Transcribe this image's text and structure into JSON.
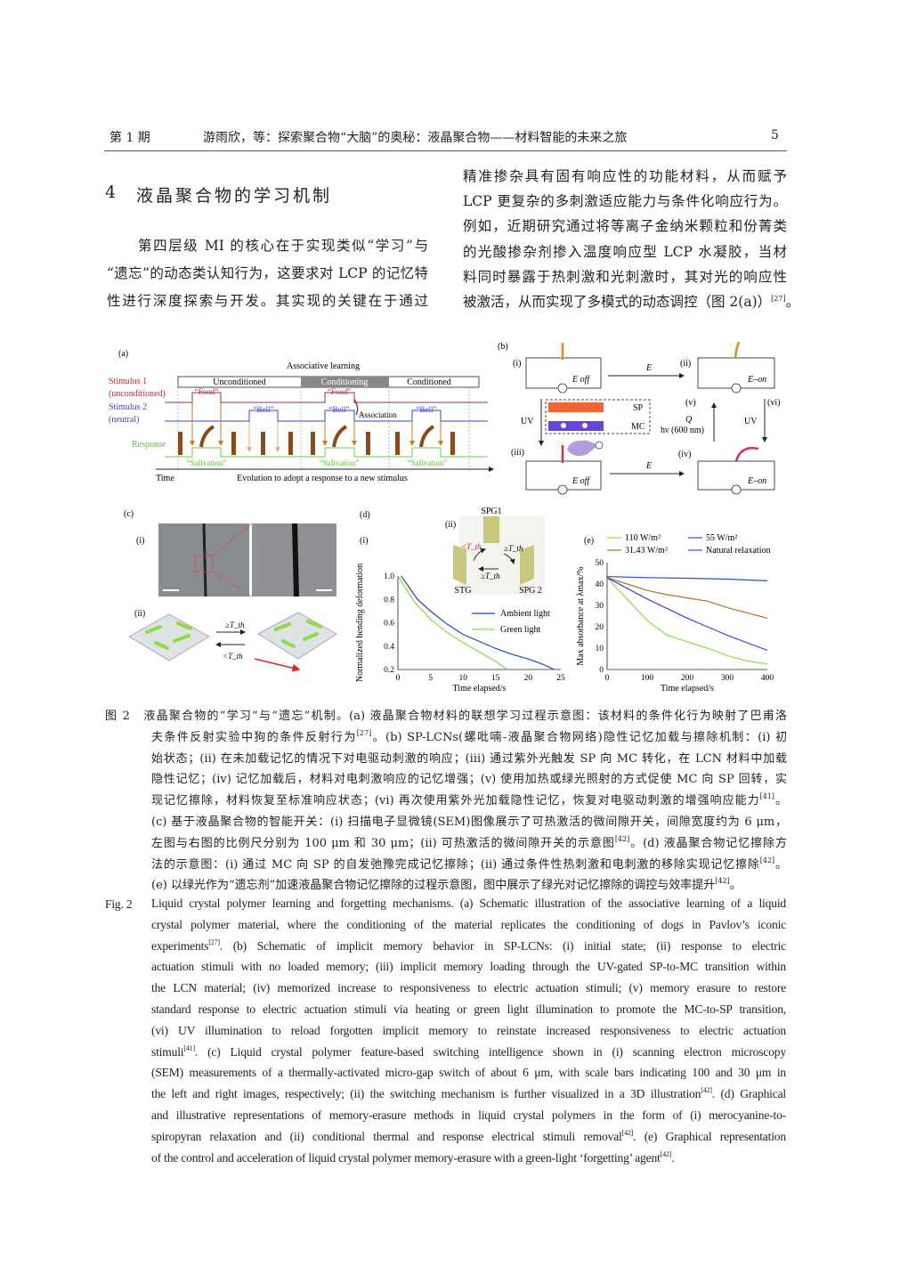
{
  "header": {
    "issue": "第 1 期",
    "title": "游雨欣，等：探索聚合物“大脑”的奥秘：液晶聚合物——材料智能的未来之旅",
    "page_number": "5"
  },
  "section": {
    "number": "4",
    "title": "液晶聚合物的学习机制"
  },
  "left_column": [
    {
      "t": "第四层级 MI 的核心在于实现类似“学习”与"
    },
    {
      "t": "“遗忘”的动态类认知行为，这要求对 LCP 的记忆特"
    },
    {
      "t": "性进行深度探索与开发。其实现的关键在于通过"
    }
  ],
  "right_column": [
    {
      "t": "精准掺杂具有固有响应性的功能材料，从而赋予"
    },
    {
      "t": "LCP 更复杂的多刺激适应能力与条件化响应行为。"
    },
    {
      "t": "例如，近期研究通过将等离子金纳米颗粒和份菁类"
    },
    {
      "t": "的光酸掺杂剂掺入温度响应型 LCP 水凝胶，当材"
    },
    {
      "t": "料同时暴露于热刺激和光刺激时，其对光的响应性"
    },
    {
      "t": "被激活，从而实现了多模式的动态调控（图 2(a)）",
      "sup": "[27]",
      "after": "。"
    }
  ],
  "figure": {
    "a": {
      "label": "(a)",
      "title": "Associative learning",
      "phases": [
        "Unconditioned",
        "Conditioning",
        "Conditioned"
      ],
      "stimulus1": "Stimulus 1",
      "stimulus1_sub": "(unconditioned)",
      "stimulus2": "Stimulus 2",
      "stimulus2_sub": "(neutral)",
      "response": "Response",
      "food": "“Food”",
      "bell": "“Bell”",
      "association": "Association",
      "salivation": "“Salivation”",
      "time": "Time",
      "evolution": "Evolution to adopt a response to a new stimulus",
      "colors": {
        "stimulus1": "#993344",
        "stimulus2": "#3344cc",
        "response": "#66cc44",
        "conditioning_fill": "#888888"
      }
    },
    "b": {
      "label": "(b)",
      "i": "(i)",
      "ii": "(ii)",
      "iii": "(iii)",
      "iv": "(iv)",
      "v": "(v)",
      "vi": "(vi)",
      "e_off": "E  off",
      "e_on": "E–on",
      "e": "E",
      "uv": "UV",
      "sp": "SP",
      "mc": "MC",
      "q": "Q",
      "hv": "hν (600 nm)"
    },
    "c": {
      "label": "(c)",
      "i": "(i)",
      "ii": "(ii)",
      "ge": "≥T_th",
      "lt": "<T_th"
    },
    "d": {
      "label": "(d)",
      "i": "(i)",
      "ii": "(ii)",
      "spg1": "SPG1",
      "stg": "STG",
      "spg2": "SPG 2",
      "lt_t": "<T_th",
      "ge_t1": "≥T_th",
      "ge_t2": "≥T_th"
    },
    "e": {
      "label": "(e)"
    }
  },
  "chart_data": [
    {
      "type": "line",
      "panel": "(d)(i)",
      "xlabel": "Time elapsed/s",
      "ylabel": "Normalized bending deformation",
      "xlim": [
        0,
        25
      ],
      "ylim": [
        0.2,
        1.0
      ],
      "xticks": [
        "0",
        "5",
        "10",
        "15",
        "20",
        "25"
      ],
      "yticks": [
        "0.2",
        "0.4",
        "0.6",
        "0.8",
        "1.0"
      ],
      "legend": "center-right",
      "series": [
        {
          "name": "Ambient light",
          "color": "#2244bb",
          "x": [
            0.5,
            3,
            5,
            7.5,
            10,
            12.5,
            15,
            17.5,
            20,
            22,
            24
          ],
          "y": [
            1.0,
            0.8,
            0.7,
            0.59,
            0.5,
            0.44,
            0.38,
            0.33,
            0.29,
            0.25,
            0.2
          ]
        },
        {
          "name": "Green light",
          "color": "#88dd44",
          "x": [
            0,
            2.5,
            5,
            7.5,
            10,
            12.5,
            15,
            16.8
          ],
          "y": [
            1.0,
            0.78,
            0.63,
            0.52,
            0.43,
            0.35,
            0.27,
            0.2
          ]
        }
      ]
    },
    {
      "type": "line",
      "panel": "(e)",
      "xlabel": "Time elapsed/s",
      "ylabel": "Max absorbance at λmax/%",
      "xlim": [
        0,
        400
      ],
      "ylim": [
        0,
        50
      ],
      "xticks": [
        "0",
        "100",
        "200",
        "300",
        "400"
      ],
      "yticks": [
        "0",
        "10",
        "20",
        "30",
        "40",
        "50"
      ],
      "legend": "top",
      "series": [
        {
          "name": "110 W/m²",
          "color": "#88e044",
          "x": [
            0,
            50,
            100,
            150,
            200,
            250,
            300,
            350,
            400
          ],
          "y": [
            43,
            33,
            23,
            16,
            13,
            10,
            6.5,
            4,
            2.5
          ]
        },
        {
          "name": "31.43 W/m²",
          "color": "#aa7722",
          "x": [
            0,
            50,
            100,
            150,
            200,
            250,
            300,
            350,
            400
          ],
          "y": [
            43,
            40,
            37,
            35,
            33.5,
            32,
            29,
            26.5,
            24
          ]
        },
        {
          "name": "55 W/m²",
          "color": "#5533dd",
          "x": [
            0,
            50,
            100,
            150,
            200,
            250,
            300,
            350,
            400
          ],
          "y": [
            43,
            38,
            33,
            28.5,
            24,
            20,
            16,
            12.5,
            9
          ]
        },
        {
          "name": "Natural relaxation",
          "color": "#2255cc",
          "x": [
            0,
            100,
            200,
            300,
            400
          ],
          "y": [
            43.5,
            43,
            42.7,
            42.3,
            41.5
          ]
        }
      ]
    }
  ],
  "caption_cn": [
    {
      "t": "图 2　液晶聚合物的“学习”与“遗忘”机制。(a) 液晶聚合物材料的联想学习过程示意图：该材料的条件化行为映射了巴甫洛",
      "indent": 0
    },
    {
      "t": "夫条件反射实验中狗的条件反射行为",
      "sup": "[27]",
      "after": "。(b) SP-LCNs(螺吡喃-液晶聚合物网络)隐性记忆加载与擦除机制：(i) 初"
    },
    {
      "t": "始状态；(ii) 在未加载记忆的情况下对电驱动刺激的响应；(iii) 通过紫外光触发 SP 向 MC 转化，在 LCN 材料中加载"
    },
    {
      "t": "隐性记忆；(iv) 记忆加载后，材料对电刺激响应的记忆增强；(v) 使用加热或绿光照射的方式促使 MC 向 SP 回转，实"
    },
    {
      "t": "现记忆擦除，材料恢复至标准响应状态；(vi) 再次使用紫外光加载隐性记忆，恢复对电驱动刺激的增强响应能力",
      "sup": "[41]",
      "after": "。"
    },
    {
      "t": "(c) 基于液晶聚合物的智能开关：(i) 扫描电子显微镜(SEM)图像展示了可热激活的微间隙开关，间隙宽度约为 6 μm，"
    },
    {
      "t": "左图与右图的比例尺分别为 100 μm 和 30 μm；(ii) 可热激活的微间隙开关的示意图",
      "sup": "[42]",
      "after": "。(d) 液晶聚合物记忆擦除方"
    },
    {
      "t": "法的示意图：(i) 通过 MC 向 SP 的自发弛豫完成记忆擦除；(ii) 通过条件性热刺激和电刺激的移除实现记忆擦除",
      "sup": "[42]",
      "after": "。"
    },
    {
      "t": "(e) 以绿光作为“遗忘剂”加速液晶聚合物记忆擦除的过程示意图，图中展示了绿光对记忆擦除的调控与效率提升",
      "sup": "[42]",
      "after": "。"
    }
  ],
  "caption_en_label": "Fig. 2",
  "caption_en": [
    {
      "t": "Liquid crystal polymer learning and forgetting mechanisms. (a) Schematic illustration of the associative learning of a liquid"
    },
    {
      "t": "crystal polymer material, where the conditioning of the material replicates the conditioning of dogs in Pavlov’s iconic"
    },
    {
      "t": "experiments",
      "sup": "[27]",
      "after": ". (b) Schematic of implicit memory behavior in SP-LCNs: (i) initial state; (ii) response to electric"
    },
    {
      "t": "actuation stimuli with no loaded memory; (iii) implicit memory loading through the UV-gated SP-to-MC transition within"
    },
    {
      "t": "the LCN material; (iv) memorized increase to responsiveness to electric actuation stimuli; (v) memory erasure to restore"
    },
    {
      "t": "standard response to electric actuation stimuli via heating or green light illumination to promote the MC-to-SP transition,"
    },
    {
      "t": "(vi) UV illumination to reload forgotten implicit memory to reinstate increased responsiveness to electric actuation"
    },
    {
      "t": "stimuli",
      "sup": "[41]",
      "after": ". (c) Liquid crystal polymer feature-based switching intelligence shown in (i) scanning electron microscopy"
    },
    {
      "t": "(SEM) measurements of a thermally-activated micro-gap switch of about 6 μm, with scale bars indicating 100 and 30 μm in"
    },
    {
      "t": "the left and right images, respectively; (ii) the switching mechanism is further visualized in a 3D illustration",
      "sup": "[42]",
      "after": ". (d) Graphical"
    },
    {
      "t": "and illustrative representations of memory-erasure methods in liquid crystal polymers in the form of (i) merocyanine-to-"
    },
    {
      "t": "spiropyran relaxation and (ii) conditional thermal and response electrical stimuli removal",
      "sup": "[42]",
      "after": ". (e) Graphical representation"
    },
    {
      "t": "of the control and acceleration of liquid crystal polymer memory-erasure with a green-light ‘forgetting’ agent",
      "sup": "[42]",
      "after": "."
    }
  ]
}
